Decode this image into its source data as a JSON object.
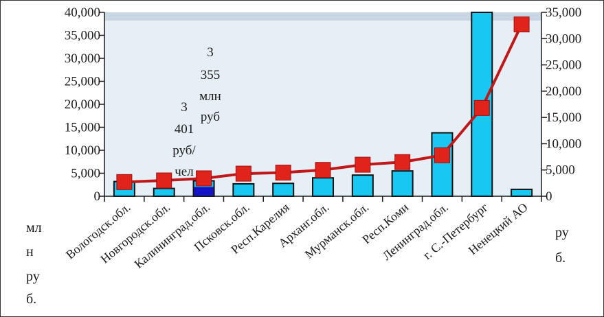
{
  "colors": {
    "plot_bg": "#e6eef6",
    "top_band": "#c8d6e4",
    "bar_fill": "#19c8f2",
    "bar_highlight": "#1414c8",
    "bar_stroke": "#111111",
    "line_color": "#c01818",
    "marker_fill": "#e0241c",
    "axis_color": "#1a1a1a"
  },
  "chart_data": {
    "type": "bar",
    "categories": [
      "Вологодск.обл.",
      "Новгородск.обл.",
      "Калининград.обл.",
      "Псковск.обл.",
      "Респ.Карелия",
      "Арханг.обл.",
      "Мурманск.обл.",
      "Респ.Коми",
      "Ленинград.обл.",
      "г. С.-Петербург",
      "Ненецкий АО"
    ],
    "series": [
      {
        "kind": "bar",
        "axis": "left",
        "values": [
          3200,
          1700,
          3355,
          2700,
          2800,
          4000,
          4600,
          5500,
          13800,
          40000,
          1500
        ]
      },
      {
        "kind": "line",
        "axis": "right",
        "values": [
          2700,
          3000,
          3401,
          4300,
          4500,
          5000,
          6000,
          6500,
          7800,
          16800,
          32700
        ]
      }
    ],
    "highlight_index": 2,
    "left_axis": {
      "ylim": [
        0,
        40000
      ],
      "ticks": [
        "0",
        "5,000",
        "10,000",
        "15,000",
        "20,000",
        "25,000",
        "30,000",
        "35,000",
        "40,000"
      ],
      "label_lines": [
        "мл",
        "н",
        "ру",
        "б."
      ]
    },
    "right_axis": {
      "ylim": [
        0,
        35000
      ],
      "ticks": [
        "0",
        "5,000",
        "10,000",
        "15,000",
        "20,000",
        "25,000",
        "30,000",
        "35,000"
      ],
      "label_lines": [
        "ру",
        "б."
      ]
    },
    "annotations": [
      {
        "lines": [
          "3",
          "355",
          "млн",
          "руб"
        ]
      },
      {
        "lines": [
          "3",
          "401",
          "руб/",
          "чел"
        ]
      }
    ],
    "grid": false,
    "legend": "none"
  }
}
